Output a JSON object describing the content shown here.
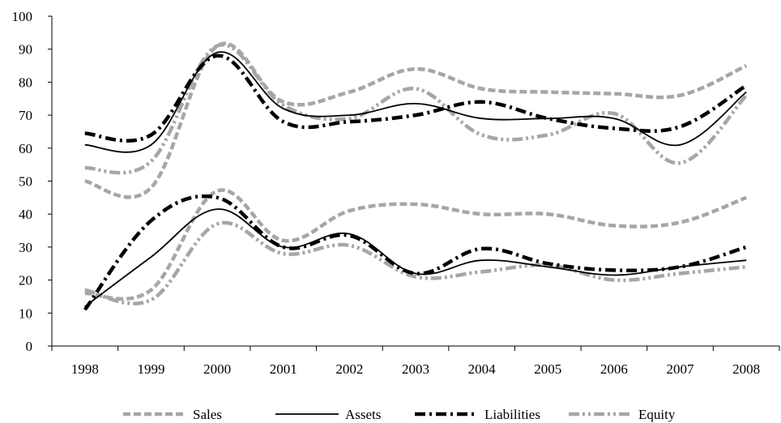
{
  "chart_data": {
    "type": "line",
    "title": "",
    "xlabel": "",
    "ylabel": "",
    "categories": [
      "1998",
      "1999",
      "2000",
      "2001",
      "2002",
      "2003",
      "2004",
      "2005",
      "2006",
      "2007",
      "2008"
    ],
    "ylim": [
      0,
      100
    ],
    "yticks": [
      0,
      10,
      20,
      30,
      40,
      50,
      60,
      70,
      80,
      90,
      100
    ],
    "grid": false,
    "legend_position": "bottom",
    "series": [
      {
        "name": "Sales",
        "group": "upper",
        "color": "#a6a6a6",
        "style": "dashed-thick",
        "values": [
          50,
          48,
          91,
          74,
          77,
          84,
          78,
          77,
          76.5,
          76,
          85
        ]
      },
      {
        "name": "Assets",
        "group": "upper",
        "color": "#000000",
        "style": "solid",
        "values": [
          61,
          61,
          89,
          72,
          70,
          73.5,
          69,
          69,
          69,
          61,
          77
        ]
      },
      {
        "name": "Liabilities",
        "group": "upper",
        "color": "#000000",
        "style": "dash-dot-thick",
        "values": [
          64.5,
          64,
          88,
          68,
          68,
          70,
          74,
          69,
          66,
          66.5,
          79
        ]
      },
      {
        "name": "Equity",
        "group": "upper",
        "color": "#a6a6a6",
        "style": "dash-dot-dot-thick",
        "values": [
          54,
          56,
          91,
          73,
          69,
          78,
          64,
          64,
          70.5,
          55.5,
          76
        ]
      },
      {
        "name": "Sales",
        "group": "lower",
        "color": "#a6a6a6",
        "style": "dashed-thick",
        "values": [
          16,
          17,
          47,
          32,
          41,
          43,
          40,
          40,
          36.5,
          37.5,
          45
        ]
      },
      {
        "name": "Assets",
        "group": "lower",
        "color": "#000000",
        "style": "solid",
        "values": [
          12,
          27,
          41.5,
          30,
          34,
          22,
          26,
          24,
          21.5,
          24,
          26
        ]
      },
      {
        "name": "Liabilities",
        "group": "lower",
        "color": "#000000",
        "style": "dash-dot-thick",
        "values": [
          11,
          38,
          45,
          30,
          33.5,
          22,
          29.5,
          25,
          23,
          24,
          30
        ]
      },
      {
        "name": "Equity",
        "group": "lower",
        "color": "#a6a6a6",
        "style": "dash-dot-dot-thick",
        "values": [
          17,
          14,
          37,
          28,
          30.5,
          21,
          22.5,
          24.5,
          20,
          22,
          24
        ]
      }
    ],
    "legend": [
      {
        "label": "Sales",
        "color": "#a6a6a6",
        "style": "dashed-thick"
      },
      {
        "label": "Assets",
        "color": "#000000",
        "style": "solid"
      },
      {
        "label": "Liabilities",
        "color": "#000000",
        "style": "dash-dot-thick"
      },
      {
        "label": "Equity",
        "color": "#a6a6a6",
        "style": "dash-dot-dot-thick"
      }
    ]
  }
}
